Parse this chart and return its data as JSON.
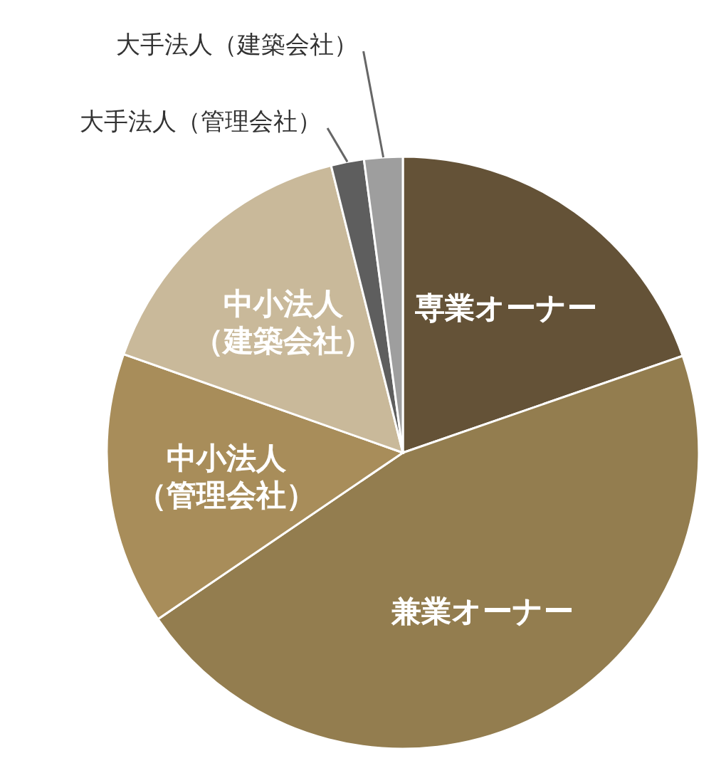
{
  "chart_data": {
    "type": "pie",
    "categories": [
      "専業オーナー",
      "兼業オーナー",
      "中小法人（管理会社）",
      "中小法人（建築会社）",
      "大手法人（管理会社）",
      "大手法人（建築会社）"
    ],
    "values": [
      19.7,
      45.8,
      14.9,
      15.7,
      1.8,
      2.1
    ],
    "colors": [
      "#645237",
      "#937d4f",
      "#a88d5a",
      "#c9b99a",
      "#5e5e5e",
      "#9e9e9e"
    ]
  }
}
